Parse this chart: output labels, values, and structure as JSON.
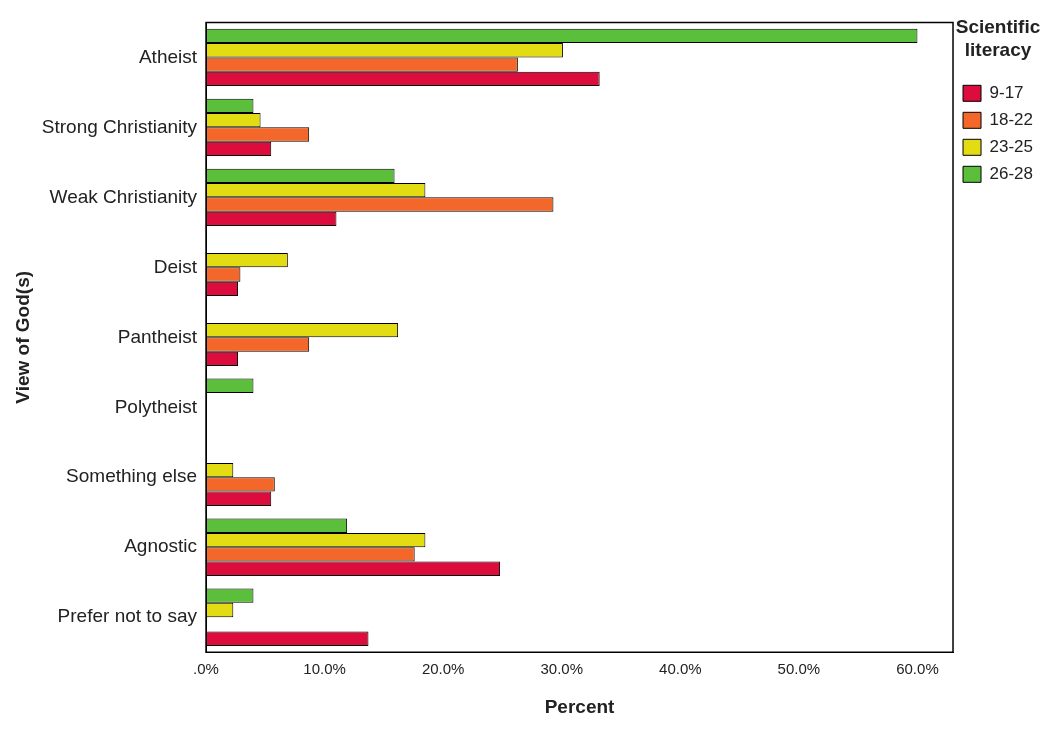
{
  "chart_data": {
    "type": "bar",
    "orientation": "horizontal",
    "xlabel": "Percent",
    "ylabel": "View of God(s)",
    "legend_title": "Scientific literacy",
    "legend": "right",
    "categories": [
      "Atheist",
      "Strong Christianity",
      "Weak Christianity",
      "Deist",
      "Pantheist",
      "Polytheist",
      "Something else",
      "Agnostic",
      "Prefer not to say"
    ],
    "series": [
      {
        "name": "9-17",
        "color": "#dc0c3c",
        "values": [
          33.2,
          5.5,
          11.0,
          2.7,
          2.7,
          0,
          5.5,
          24.8,
          13.7
        ]
      },
      {
        "name": "18-22",
        "color": "#f3672a",
        "values": [
          26.3,
          8.7,
          29.3,
          2.9,
          8.7,
          0,
          5.8,
          17.6,
          0
        ]
      },
      {
        "name": "23-25",
        "color": "#e3dc12",
        "values": [
          30.1,
          4.6,
          18.5,
          6.9,
          16.2,
          0,
          2.3,
          18.5,
          2.3
        ]
      },
      {
        "name": "26-28",
        "color": "#5cbf3c",
        "values": [
          60,
          4.0,
          15.9,
          0,
          0,
          4.0,
          0,
          11.9,
          4.0
        ]
      }
    ],
    "xlim": [
      0,
      63
    ],
    "xticks": [
      {
        "value": 0,
        "label": ".0%"
      },
      {
        "value": 10,
        "label": "10.0%"
      },
      {
        "value": 20,
        "label": "20.0%"
      },
      {
        "value": 30,
        "label": "30.0%"
      },
      {
        "value": 40,
        "label": "40.0%"
      },
      {
        "value": 50,
        "label": "50.0%"
      },
      {
        "value": 60,
        "label": "60.0%"
      }
    ],
    "grid": false
  }
}
